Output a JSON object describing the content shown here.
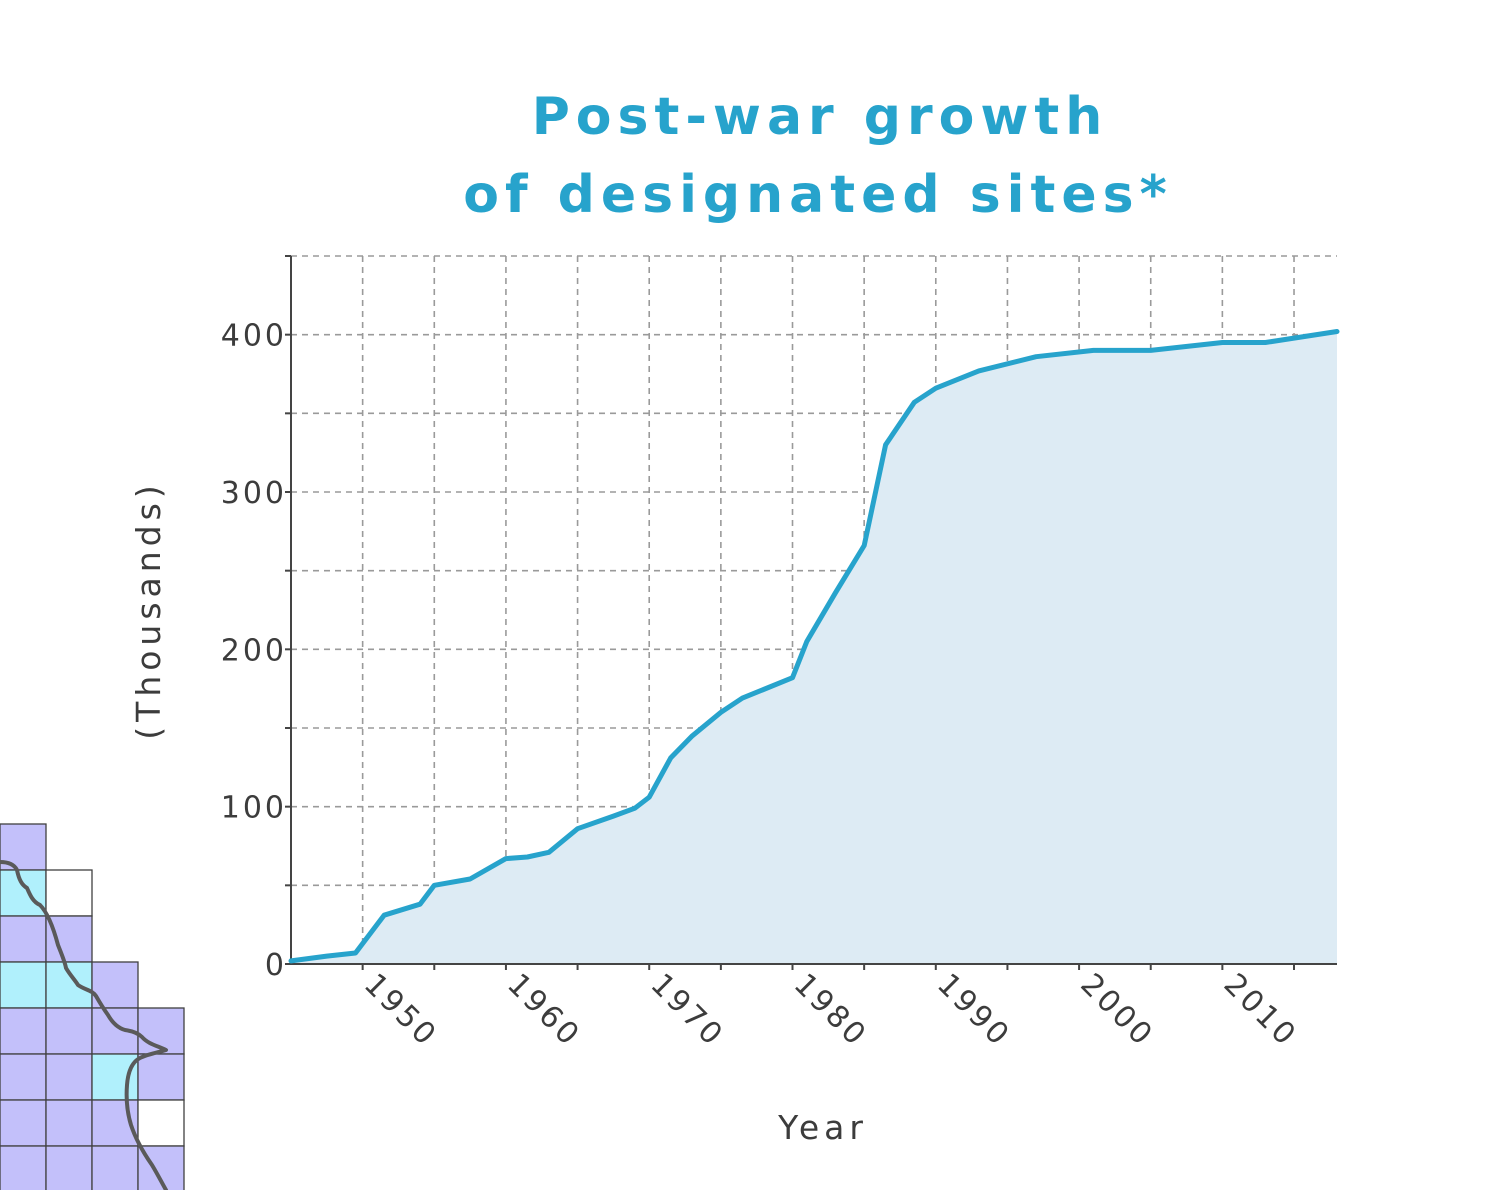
{
  "chart_data": {
    "type": "area",
    "title_lines": [
      "Post-war growth",
      "of designated sites*"
    ],
    "xlabel": "Year",
    "ylabel": "(Thousands)",
    "xlim": [
      1945,
      2018
    ],
    "ylim": [
      0,
      450
    ],
    "x_ticks": [
      1950,
      1960,
      1970,
      1980,
      1990,
      2000,
      2010
    ],
    "y_ticks": [
      0,
      100,
      200,
      300,
      400
    ],
    "grid": true,
    "series": [
      {
        "x": [
          1945,
          1947.5,
          1949.5,
          1951.5,
          1954,
          1955,
          1957.5,
          1960,
          1961.5,
          1963,
          1965,
          1967.5,
          1969,
          1970,
          1971.5,
          1973,
          1975,
          1976.5,
          1980,
          1981,
          1983,
          1985,
          1986.5,
          1988.5,
          1990,
          1993,
          1997,
          2001,
          2005,
          2010,
          2013,
          2018
        ],
        "y": [
          2,
          5,
          7,
          31,
          38,
          50,
          54,
          67,
          68,
          71,
          86,
          94,
          99,
          106,
          131,
          145,
          160,
          169,
          182,
          205,
          236,
          266,
          330,
          357,
          366,
          377,
          386,
          390,
          390,
          395,
          395,
          402
        ]
      }
    ],
    "colors": {
      "line": "#27a3cc",
      "fill": "#ddebf4",
      "title": "#27a3cc",
      "text": "#3c3c3c"
    }
  },
  "map_inset": {
    "colors": {
      "purple": "#c3c0fa",
      "cyan": "#b0f0fc",
      "white": "#ffffff",
      "border": "#404040",
      "coast": "#5a5a5a"
    }
  }
}
